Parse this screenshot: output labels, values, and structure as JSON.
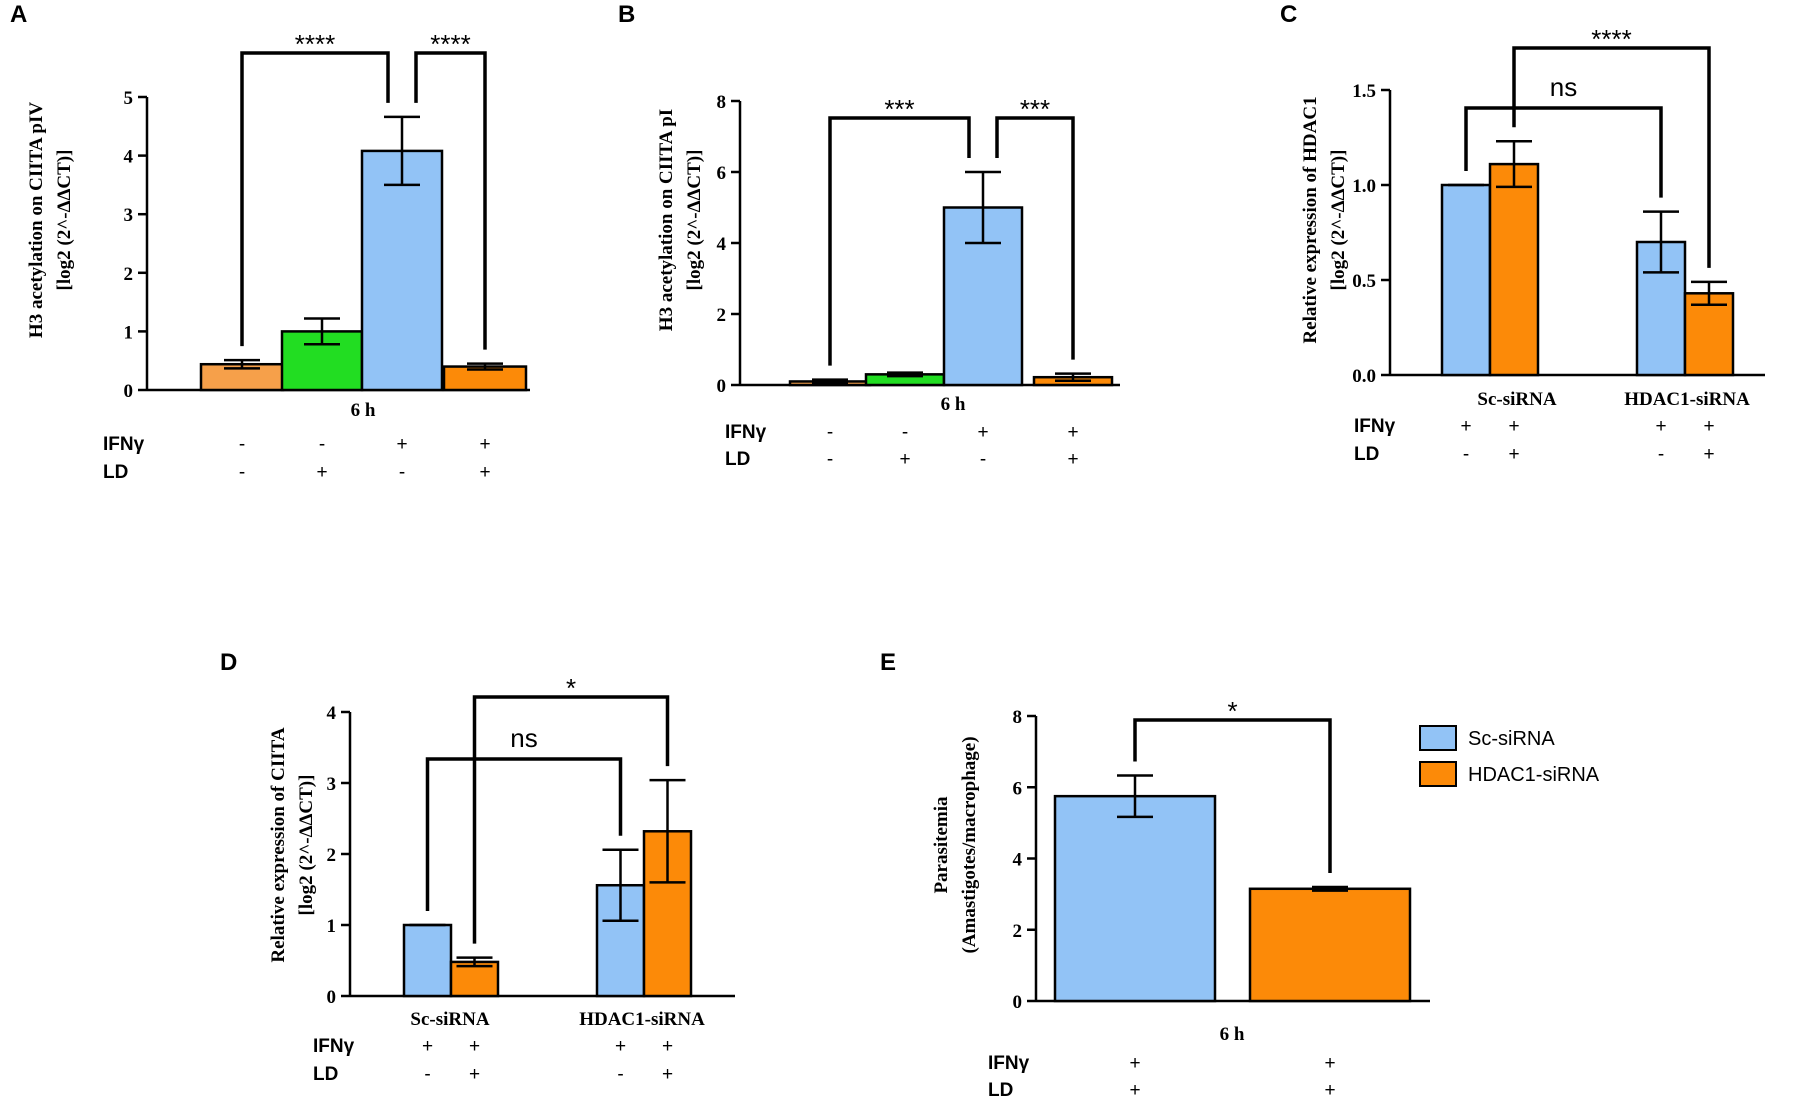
{
  "figure": {
    "panels": [
      "A",
      "B",
      "C",
      "D",
      "E"
    ]
  },
  "colors": {
    "orange_light": "#f6a04a",
    "green": "#22dd22",
    "blue": "#92c3f6",
    "orange": "#fc8a08",
    "axis": "#000000"
  },
  "chart_data": [
    {
      "panel": "A",
      "type": "bar",
      "ylabel_line1": "H3 acetylation on CIITA pIV",
      "ylabel_line2": "[log2 (2^-ΔΔCT)]",
      "ylim": [
        0,
        5
      ],
      "yticks": [
        "0",
        "1",
        "2",
        "3",
        "4",
        "5"
      ],
      "group_label": "6 h",
      "categories": [
        "IFNγ-/LD-",
        "IFNγ-/LD+",
        "IFNγ+/LD-",
        "IFNγ+/LD+"
      ],
      "values": [
        0.44,
        1.0,
        4.08,
        0.4
      ],
      "errors": [
        0.07,
        0.22,
        0.58,
        0.05
      ],
      "condition_rows": [
        {
          "label": "IFNγ",
          "values": [
            "-",
            "-",
            "+",
            "+"
          ]
        },
        {
          "label": "LD",
          "values": [
            "-",
            "+",
            "-",
            "+"
          ]
        }
      ],
      "significance": [
        {
          "from": 0,
          "to": 2,
          "label": "****"
        },
        {
          "from": 2,
          "to": 3,
          "label": "****"
        }
      ]
    },
    {
      "panel": "B",
      "type": "bar",
      "ylabel_line1": "H3 acetylation on CIITA pI",
      "ylabel_line2": "[log2 (2^-ΔΔCT)]",
      "ylim": [
        0,
        8
      ],
      "yticks": [
        "0",
        "2",
        "4",
        "6",
        "8"
      ],
      "group_label": "6 h",
      "categories": [
        "IFNγ-/LD-",
        "IFNγ-/LD+",
        "IFNγ+/LD-",
        "IFNγ+/LD+"
      ],
      "values": [
        0.1,
        0.3,
        5.0,
        0.22
      ],
      "errors": [
        0.05,
        0.05,
        1.0,
        0.1
      ],
      "condition_rows": [
        {
          "label": "IFNγ",
          "values": [
            "-",
            "-",
            "+",
            "+"
          ]
        },
        {
          "label": "LD",
          "values": [
            "-",
            "+",
            "-",
            "+"
          ]
        }
      ],
      "significance": [
        {
          "from": 0,
          "to": 2,
          "label": "***"
        },
        {
          "from": 2,
          "to": 3,
          "label": "***"
        }
      ]
    },
    {
      "panel": "C",
      "type": "bar",
      "ylabel_line1": "Relative expression of HDAC1",
      "ylabel_line2": "[log2 (2^-ΔΔCT)]",
      "ylim": [
        0,
        1.5
      ],
      "yticks": [
        "0.0",
        "0.5",
        "1.0",
        "1.5"
      ],
      "groups": [
        "Sc-siRNA",
        "HDAC1-siRNA"
      ],
      "series": [
        {
          "name": "IFNγ+/LD-",
          "values": [
            1.0,
            0.7
          ],
          "errors": [
            0.0,
            0.16
          ]
        },
        {
          "name": "IFNγ+/LD+",
          "values": [
            1.11,
            0.43
          ],
          "errors": [
            0.12,
            0.06
          ]
        }
      ],
      "condition_rows": [
        {
          "label": "IFNγ",
          "values": [
            "+",
            "+",
            "+",
            "+"
          ]
        },
        {
          "label": "LD",
          "values": [
            "-",
            "+",
            "-",
            "+"
          ]
        }
      ],
      "significance": [
        {
          "from": 0,
          "to": 2,
          "label": "ns"
        },
        {
          "from": 1,
          "to": 3,
          "label": "****"
        }
      ]
    },
    {
      "panel": "D",
      "type": "bar",
      "ylabel_line1": "Relative expression of CIITA",
      "ylabel_line2": "[log2 (2^-ΔΔCT)]",
      "ylim": [
        0,
        4
      ],
      "yticks": [
        "0",
        "1",
        "2",
        "3",
        "4"
      ],
      "groups": [
        "Sc-siRNA",
        "HDAC1-siRNA"
      ],
      "series": [
        {
          "name": "IFNγ+/LD-",
          "values": [
            1.0,
            1.56
          ],
          "errors": [
            0.0,
            0.5
          ]
        },
        {
          "name": "IFNγ+/LD+",
          "values": [
            0.48,
            2.32
          ],
          "errors": [
            0.06,
            0.72
          ]
        }
      ],
      "condition_rows": [
        {
          "label": "IFNγ",
          "values": [
            "+",
            "+",
            "+",
            "+"
          ]
        },
        {
          "label": "LD",
          "values": [
            "-",
            "+",
            "-",
            "+"
          ]
        }
      ],
      "significance": [
        {
          "from": 0,
          "to": 2,
          "label": "ns"
        },
        {
          "from": 1,
          "to": 3,
          "label": "*"
        }
      ]
    },
    {
      "panel": "E",
      "type": "bar",
      "ylabel_line1": "Parasitemia",
      "ylabel_line2": "(Amastigotes/macrophage)",
      "ylim": [
        0,
        8
      ],
      "yticks": [
        "0",
        "2",
        "4",
        "6",
        "8"
      ],
      "group_label": "6 h",
      "categories": [
        "Sc-siRNA",
        "HDAC1-siRNA"
      ],
      "values": [
        5.75,
        3.15
      ],
      "errors": [
        0.58,
        0.05
      ],
      "condition_rows": [
        {
          "label": "IFNγ",
          "values": [
            "+",
            "+"
          ]
        },
        {
          "label": "LD",
          "values": [
            "+",
            "+"
          ]
        }
      ],
      "significance": [
        {
          "from": 0,
          "to": 1,
          "label": "*"
        }
      ],
      "legend": [
        {
          "label": "Sc-siRNA",
          "color": "#92c3f6"
        },
        {
          "label": "HDAC1-siRNA",
          "color": "#fc8a08"
        }
      ]
    }
  ]
}
